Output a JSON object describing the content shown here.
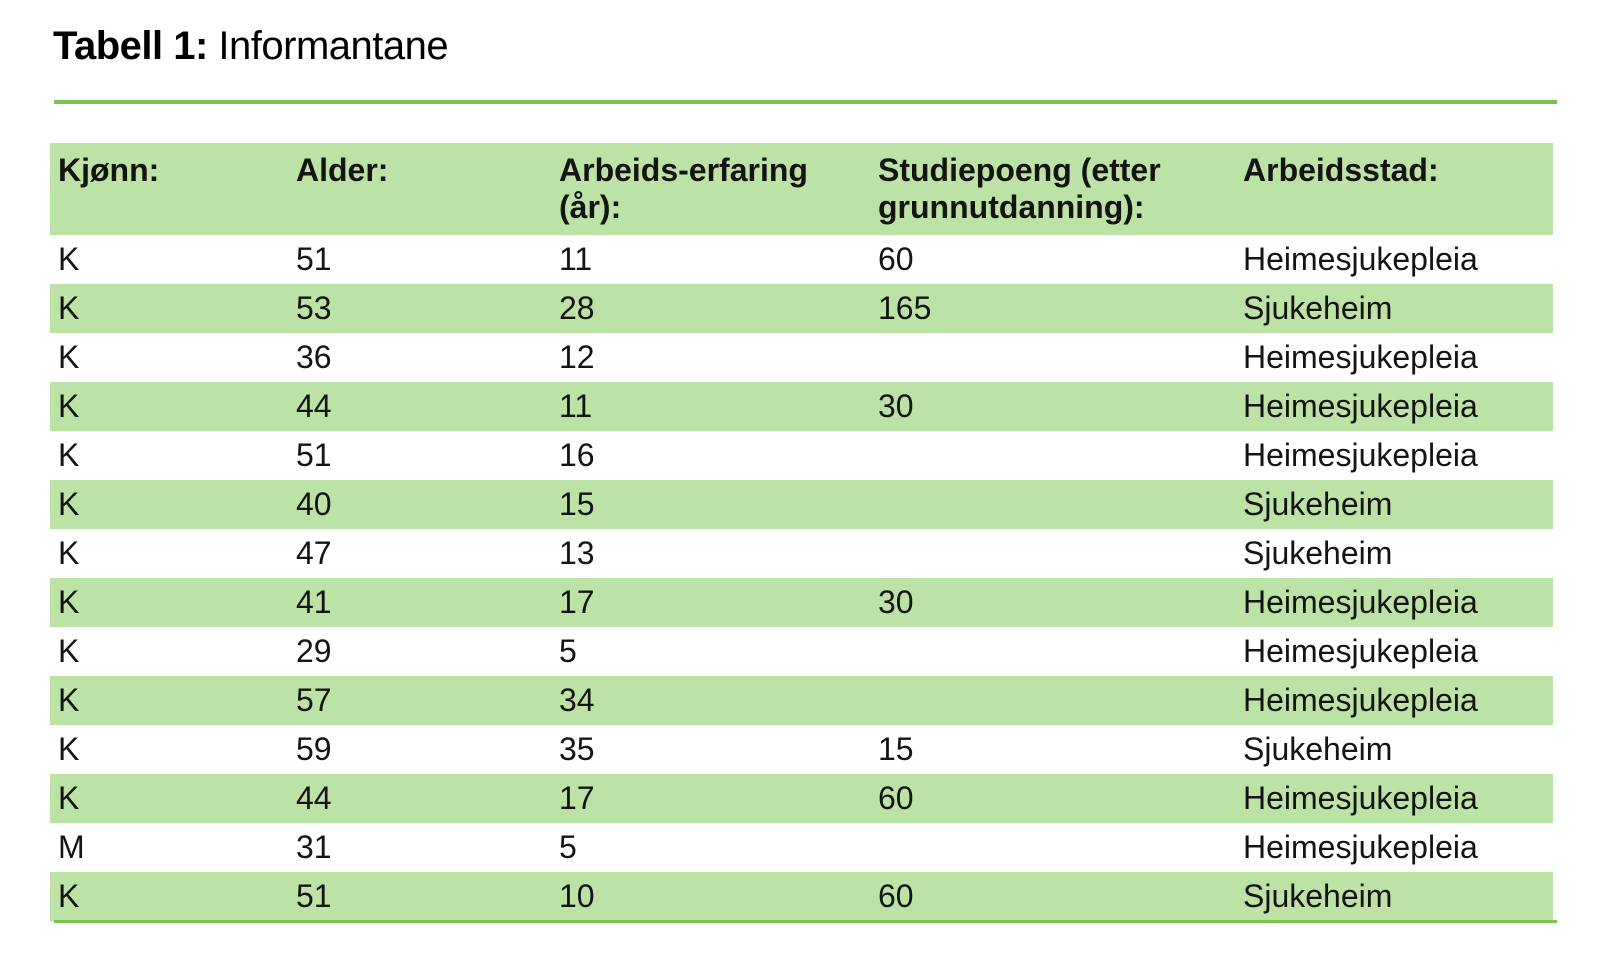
{
  "title": {
    "label": "Tabell 1:",
    "text": " Informantane"
  },
  "table": {
    "columns": [
      "Kjønn:",
      "Alder:",
      "Arbeids-erfaring (år):",
      "Studiepoeng (etter grunnutdanning):",
      "Arbeidsstad:"
    ],
    "rows": [
      [
        "K",
        "51",
        "11",
        "60",
        "Heimesjukepleia"
      ],
      [
        "K",
        "53",
        "28",
        "165",
        "Sjukeheim"
      ],
      [
        "K",
        "36",
        "12",
        "",
        "Heimesjukepleia"
      ],
      [
        "K",
        "44",
        "11",
        "30",
        "Heimesjukepleia"
      ],
      [
        "K",
        "51",
        "16",
        "",
        "Heimesjukepleia"
      ],
      [
        "K",
        "40",
        "15",
        "",
        "Sjukeheim"
      ],
      [
        "K",
        "47",
        "13",
        "",
        "Sjukeheim"
      ],
      [
        "K",
        "41",
        "17",
        "30",
        "Heimesjukepleia"
      ],
      [
        "K",
        "29",
        "5",
        "",
        "Heimesjukepleia"
      ],
      [
        "K",
        "57",
        "34",
        "",
        "Heimesjukepleia"
      ],
      [
        "K",
        "59",
        "35",
        "15",
        "Sjukeheim"
      ],
      [
        "K",
        "44",
        "17",
        "60",
        "Heimesjukepleia"
      ],
      [
        "M",
        "31",
        "5",
        "",
        "Heimesjukepleia"
      ],
      [
        "K",
        "51",
        "10",
        "60",
        "Sjukeheim"
      ]
    ]
  },
  "colors": {
    "row_green": "#bce2a5",
    "line_green": "#7bc24f",
    "text": "#141414"
  },
  "chart_data": {
    "type": "table",
    "title": "Tabell 1: Informantane",
    "columns": [
      "Kjønn:",
      "Alder:",
      "Arbeids-erfaring (år):",
      "Studiepoeng (etter grunnutdanning):",
      "Arbeidsstad:"
    ],
    "rows": [
      [
        "K",
        51,
        11,
        60,
        "Heimesjukepleia"
      ],
      [
        "K",
        53,
        28,
        165,
        "Sjukeheim"
      ],
      [
        "K",
        36,
        12,
        null,
        "Heimesjukepleia"
      ],
      [
        "K",
        44,
        11,
        30,
        "Heimesjukepleia"
      ],
      [
        "K",
        51,
        16,
        null,
        "Heimesjukepleia"
      ],
      [
        "K",
        40,
        15,
        null,
        "Sjukeheim"
      ],
      [
        "K",
        47,
        13,
        null,
        "Sjukeheim"
      ],
      [
        "K",
        41,
        17,
        30,
        "Heimesjukepleia"
      ],
      [
        "K",
        29,
        5,
        null,
        "Heimesjukepleia"
      ],
      [
        "K",
        57,
        34,
        null,
        "Heimesjukepleia"
      ],
      [
        "K",
        59,
        35,
        15,
        "Sjukeheim"
      ],
      [
        "K",
        44,
        17,
        60,
        "Heimesjukepleia"
      ],
      [
        "M",
        31,
        5,
        null,
        "Heimesjukepleia"
      ],
      [
        "K",
        51,
        10,
        60,
        "Sjukeheim"
      ]
    ]
  }
}
